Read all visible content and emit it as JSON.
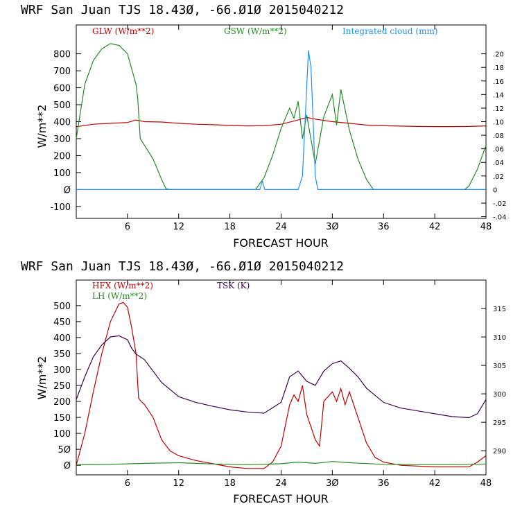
{
  "chart_data": [
    {
      "type": "line",
      "title": "WRF  San Juan TJS  18.43Ø, -66.Ø1Ø  2015040212",
      "xlabel": "FORECAST HOUR",
      "ylabel": "W/m**2",
      "xlim": [
        0,
        48
      ],
      "ylim": [
        -170,
        970
      ],
      "y2lim": [
        -0.0425,
        0.2425
      ],
      "xticks": [
        {
          "v": 6,
          "t": "6"
        },
        {
          "v": 12,
          "t": "12"
        },
        {
          "v": 18,
          "t": "18"
        },
        {
          "v": 24,
          "t": "24"
        },
        {
          "v": 30,
          "t": "3Ø"
        },
        {
          "v": 36,
          "t": "36"
        },
        {
          "v": 42,
          "t": "42"
        },
        {
          "v": 48,
          "t": "48"
        }
      ],
      "yticks": [
        {
          "v": 800,
          "t": "800"
        },
        {
          "v": 700,
          "t": "700"
        },
        {
          "v": 600,
          "t": "600"
        },
        {
          "v": 500,
          "t": "500"
        },
        {
          "v": 400,
          "t": "400"
        },
        {
          "v": 300,
          "t": "300"
        },
        {
          "v": 200,
          "t": "200"
        },
        {
          "v": 100,
          "t": "100"
        },
        {
          "v": 0,
          "t": "Ø"
        },
        {
          "v": -100,
          "t": "-100"
        }
      ],
      "y2ticks": [
        {
          "v": 0.2,
          "t": ".20"
        },
        {
          "v": 0.18,
          "t": ".18"
        },
        {
          "v": 0.16,
          "t": ".16"
        },
        {
          "v": 0.14,
          "t": ".14"
        },
        {
          "v": 0.12,
          "t": ".12"
        },
        {
          "v": 0.1,
          "t": ".10"
        },
        {
          "v": 0.08,
          "t": ".08"
        },
        {
          "v": 0.06,
          "t": ".06"
        },
        {
          "v": 0.04,
          "t": ".04"
        },
        {
          "v": 0.02,
          "t": ".02"
        },
        {
          "v": 0,
          "t": "0"
        },
        {
          "v": -0.02,
          "t": "-.02"
        },
        {
          "v": -0.04,
          "t": "-.04"
        }
      ],
      "series": [
        {
          "name": "GLW (W/m**2)",
          "color": "#c00000",
          "axis": "left",
          "x": [
            0,
            2,
            4,
            6,
            7,
            8,
            10,
            12,
            14,
            16,
            18,
            20,
            22,
            24,
            26,
            27,
            28,
            30,
            32,
            34,
            36,
            38,
            40,
            42,
            44,
            46,
            48
          ],
          "y": [
            370,
            385,
            390,
            395,
            410,
            400,
            398,
            390,
            385,
            382,
            378,
            375,
            376,
            385,
            410,
            425,
            415,
            400,
            390,
            380,
            376,
            374,
            372,
            371,
            371,
            372,
            375
          ]
        },
        {
          "name": "GSW (W/m**2)",
          "color": "#228b22",
          "axis": "left",
          "x": [
            0,
            1,
            2,
            3,
            4,
            5,
            6,
            7,
            7.2,
            7.5,
            8,
            9,
            10,
            10.5,
            11,
            21,
            22,
            23,
            24,
            25,
            25.5,
            26,
            26.5,
            27,
            28,
            29,
            30,
            30.5,
            31,
            32,
            33,
            34,
            34.8,
            35,
            45.5,
            46,
            47,
            48
          ],
          "y": [
            300,
            620,
            760,
            830,
            860,
            850,
            800,
            620,
            540,
            300,
            260,
            180,
            60,
            5,
            0,
            0,
            70,
            200,
            360,
            480,
            420,
            520,
            300,
            440,
            150,
            430,
            560,
            380,
            590,
            350,
            180,
            60,
            0,
            0,
            0,
            20,
            120,
            260
          ]
        },
        {
          "name": "Integrated cloud (mm)",
          "color": "#1e90ff",
          "axis": "right",
          "x": [
            0,
            21.5,
            21.8,
            22.1,
            26,
            26.5,
            27,
            27.2,
            27.5,
            28,
            28.3,
            48
          ],
          "y": [
            0,
            0,
            0.012,
            0,
            0,
            0.02,
            0.15,
            0.205,
            0.18,
            0.02,
            0,
            0
          ]
        }
      ]
    },
    {
      "type": "line",
      "title": "WRF  San Juan TJS  18.43Ø, -66.Ø1Ø  2015040212",
      "xlabel": "FORECAST HOUR",
      "ylabel": "W/m**2",
      "xlim": [
        0,
        48
      ],
      "ylim": [
        -30,
        580
      ],
      "y2lim": [
        285.75,
        320.0
      ],
      "xticks": [
        {
          "v": 6,
          "t": "6"
        },
        {
          "v": 12,
          "t": "12"
        },
        {
          "v": 18,
          "t": "18"
        },
        {
          "v": 24,
          "t": "24"
        },
        {
          "v": 30,
          "t": "3Ø"
        },
        {
          "v": 36,
          "t": "36"
        },
        {
          "v": 42,
          "t": "42"
        },
        {
          "v": 48,
          "t": "48"
        }
      ],
      "yticks": [
        {
          "v": 500,
          "t": "500"
        },
        {
          "v": 450,
          "t": "450"
        },
        {
          "v": 400,
          "t": "400"
        },
        {
          "v": 350,
          "t": "350"
        },
        {
          "v": 300,
          "t": "300"
        },
        {
          "v": 250,
          "t": "250"
        },
        {
          "v": 200,
          "t": "200"
        },
        {
          "v": 150,
          "t": "150"
        },
        {
          "v": 100,
          "t": "100"
        },
        {
          "v": 50,
          "t": "5Ø"
        },
        {
          "v": 0,
          "t": "Ø"
        }
      ],
      "y2ticks": [
        {
          "v": 315,
          "t": "315"
        },
        {
          "v": 310,
          "t": "310"
        },
        {
          "v": 305,
          "t": "305"
        },
        {
          "v": 300,
          "t": "300"
        },
        {
          "v": 295,
          "t": "295"
        },
        {
          "v": 290,
          "t": "290"
        }
      ],
      "series": [
        {
          "name": "HFX (W/m**2)",
          "color": "#c00000",
          "axis": "left",
          "x": [
            0,
            1,
            2,
            3,
            4,
            5,
            5.5,
            6,
            6.5,
            7,
            7.3,
            7.6,
            8,
            9,
            10,
            11,
            12,
            14,
            16,
            18,
            20,
            22,
            23,
            24,
            25,
            25.5,
            26,
            26.5,
            27,
            28,
            28.5,
            29,
            30,
            30.5,
            31,
            31.5,
            32,
            33,
            34,
            35,
            36,
            38,
            42,
            46,
            47,
            48
          ],
          "y": [
            0,
            100,
            230,
            350,
            450,
            505,
            510,
            495,
            430,
            350,
            210,
            200,
            190,
            150,
            80,
            45,
            30,
            15,
            5,
            -5,
            -10,
            -10,
            10,
            60,
            190,
            220,
            200,
            250,
            160,
            80,
            60,
            200,
            230,
            200,
            240,
            190,
            230,
            150,
            70,
            25,
            10,
            0,
            -5,
            -5,
            10,
            30
          ]
        },
        {
          "name": "LH (W/m**2)",
          "color": "#228b22",
          "axis": "left",
          "x": [
            0,
            4,
            8,
            12,
            16,
            20,
            24,
            26,
            28,
            30,
            32,
            36,
            40,
            44,
            48
          ],
          "y": [
            2,
            3,
            6,
            8,
            4,
            2,
            5,
            10,
            6,
            12,
            8,
            3,
            2,
            2,
            4
          ]
        },
        {
          "name": "TSK (K)",
          "color": "#3a0050",
          "axis": "right",
          "x": [
            0,
            1,
            2,
            3,
            4,
            5,
            6,
            6.5,
            7,
            7.5,
            8,
            9,
            10,
            12,
            14,
            16,
            18,
            20,
            22,
            24,
            25,
            26,
            27,
            28,
            29,
            30,
            31,
            32,
            33,
            34,
            36,
            38,
            40,
            42,
            44,
            46,
            47,
            48
          ],
          "y": [
            299,
            303,
            306.5,
            308.6,
            310,
            310.2,
            309.5,
            308,
            307,
            306.5,
            306,
            304,
            302,
            299.5,
            298.5,
            297.8,
            297.2,
            296.8,
            296.6,
            298.5,
            303,
            304,
            302.2,
            301.5,
            304,
            305.3,
            305.8,
            304.5,
            303,
            301,
            298.5,
            297.5,
            297,
            296.5,
            296,
            295.8,
            296.5,
            299
          ]
        }
      ]
    }
  ]
}
